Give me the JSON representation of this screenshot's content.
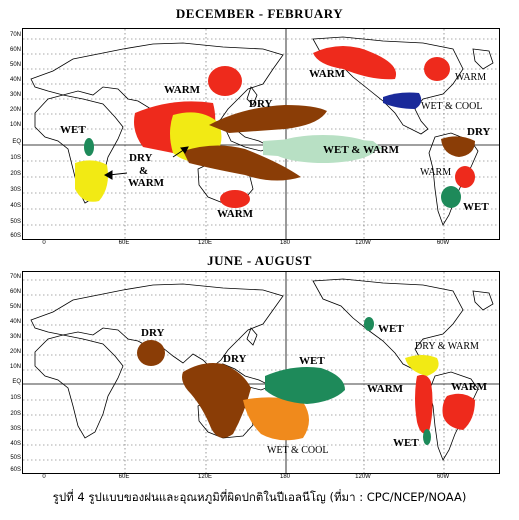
{
  "top_map": {
    "title": "DECEMBER - FEBRUARY",
    "lat_labels": [
      "70N",
      "60N",
      "50N",
      "40N",
      "30N",
      "20N",
      "10N",
      "EQ",
      "10S",
      "20S",
      "30S",
      "40S",
      "50S",
      "60S"
    ],
    "lon_labels": [
      "0",
      "60E",
      "120E",
      "180",
      "120W",
      "60W"
    ],
    "labels": {
      "warm_siberia": "WARM",
      "warm_asia": "WARM",
      "dry_pacific": "DRY",
      "wet_africa": "WET",
      "dry_warm_1": "DRY",
      "dry_warm_2": "&",
      "dry_warm_3": "WARM",
      "wet_warm_pacific": "WET  &  WARM",
      "warm_australia": "WARM",
      "warm_namerica": "WARM",
      "warm_canada": "WARM",
      "wet_cool": "WET & COOL",
      "dry_samerica": "DRY",
      "warm_samerica": "WARM",
      "wet_samerica": "WET"
    }
  },
  "bottom_map": {
    "title": "JUNE - AUGUST",
    "lat_labels": [
      "70N",
      "60N",
      "50N",
      "40N",
      "30N",
      "20N",
      "10N",
      "EQ",
      "10S",
      "20S",
      "30S",
      "40S",
      "50S",
      "60S"
    ],
    "lon_labels": [
      "0",
      "60E",
      "120E",
      "180",
      "120W",
      "60W"
    ],
    "labels": {
      "dry_africa": "DRY",
      "dry_indonesia": "DRY",
      "wet_pacific": "WET",
      "wet_namerica": "WET",
      "dry_warm_america": "DRY & WARM",
      "warm_samerica_w": "WARM",
      "warm_samerica_e": "WARM",
      "wet_cool_australia": "WET & COOL",
      "wet_samerica": "WET"
    }
  },
  "colors": {
    "warm": "#ee2a1c",
    "dry": "#8a3d06",
    "wet": "#1e8a5a",
    "wet_light": "#b8e0c4",
    "dry_warm": "#f2ea14",
    "wet_cool": "#1a2a9a",
    "wet_cool_australia": "#f08a1c"
  },
  "caption": "รูปที่ 4  รูปแบบของฝนและอุณหภูมิที่ผิดปกติในปีเอลนีโญ (ที่มา : CPC/NCEP/NOAA)"
}
